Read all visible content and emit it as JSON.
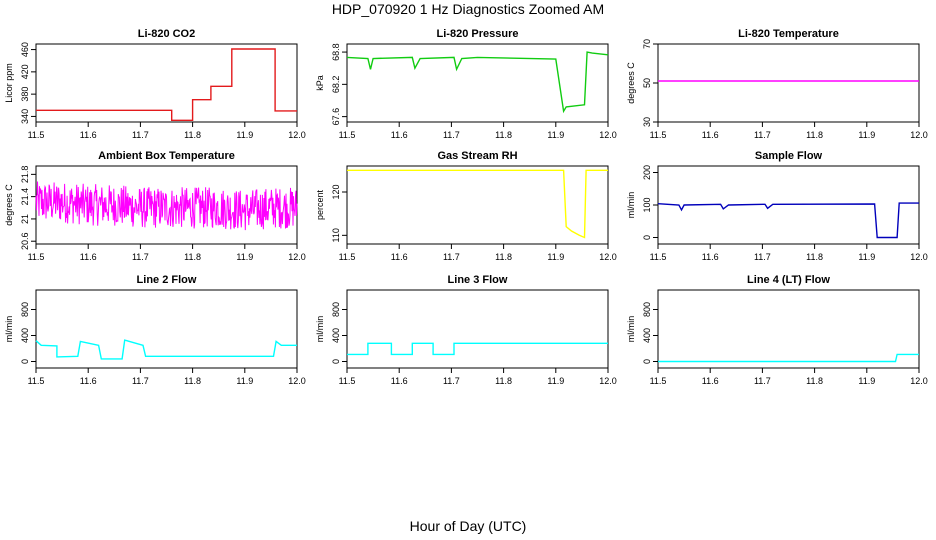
{
  "title": "HDP_070920  1 Hz Diagnostics Zoomed AM",
  "xlabel": "Hour of Day (UTC)",
  "chart_data": [
    {
      "type": "line",
      "title": "Li-820 CO2",
      "ylabel": "Licor ppm",
      "color": "#e31a1c",
      "xlim": [
        11.5,
        12.0
      ],
      "ylim": [
        330,
        470
      ],
      "xticks": [
        "11.5",
        "11.6",
        "11.7",
        "11.8",
        "11.9",
        "12.0"
      ],
      "yticks": [
        340,
        380,
        420,
        460
      ],
      "series": [
        {
          "x": [
            11.5,
            11.76,
            11.76,
            11.8,
            11.8,
            11.835,
            11.835,
            11.875,
            11.875,
            11.958,
            11.958,
            12.0
          ],
          "y": [
            351,
            351,
            333,
            333,
            370,
            370,
            394,
            394,
            461,
            461,
            350,
            350
          ]
        }
      ]
    },
    {
      "type": "line",
      "title": "Li-820 Pressure",
      "ylabel": "kPa",
      "color": "#11cc11",
      "xlim": [
        11.5,
        12.0
      ],
      "ylim": [
        67.5,
        68.95
      ],
      "xticks": [
        "11.5",
        "11.6",
        "11.7",
        "11.8",
        "11.9",
        "12.0"
      ],
      "yticks": [
        67.6,
        68.2,
        68.8
      ],
      "series": [
        {
          "x": [
            11.5,
            11.54,
            11.545,
            11.55,
            11.625,
            11.63,
            11.64,
            11.705,
            11.71,
            11.72,
            11.75,
            11.9,
            11.915,
            11.92,
            11.955,
            11.96,
            11.97,
            12.0
          ],
          "y": [
            68.7,
            68.68,
            68.48,
            68.68,
            68.7,
            68.5,
            68.68,
            68.7,
            68.48,
            68.68,
            68.7,
            68.67,
            67.7,
            67.78,
            67.82,
            68.8,
            68.78,
            68.75
          ]
        }
      ]
    },
    {
      "type": "line",
      "title": "Li-820 Temperature",
      "ylabel": "degrees C",
      "color": "#ff00ff",
      "xlim": [
        11.5,
        12.0
      ],
      "ylim": [
        30,
        70
      ],
      "xticks": [
        "11.5",
        "11.6",
        "11.7",
        "11.8",
        "11.9",
        "12.0"
      ],
      "yticks": [
        30,
        50,
        70
      ],
      "series": [
        {
          "x": [
            11.5,
            12.0
          ],
          "y": [
            51,
            51
          ]
        }
      ]
    },
    {
      "type": "line",
      "title": "Ambient Box Temperature",
      "ylabel": "degrees C",
      "color": "#ff00ff",
      "xlim": [
        11.5,
        12.0
      ],
      "ylim": [
        20.55,
        21.95
      ],
      "xticks": [
        "11.5",
        "11.6",
        "11.7",
        "11.8",
        "11.9",
        "12.0"
      ],
      "yticks": [
        20.6,
        21.0,
        21.4,
        21.8
      ],
      "series": [
        {
          "x": [
            11.5,
            11.55,
            11.6,
            11.65,
            11.7,
            11.75,
            11.8,
            11.85,
            11.9,
            11.95,
            12.0
          ],
          "y": [
            21.3,
            21.3,
            21.25,
            21.25,
            21.2,
            21.2,
            21.2,
            21.2,
            21.15,
            21.2,
            21.2
          ],
          "noise_range": [
            20.6,
            21.9
          ]
        }
      ]
    },
    {
      "type": "line",
      "title": "Gas Stream RH",
      "ylabel": "percent",
      "color": "#ffff00",
      "xlim": [
        11.5,
        12.0
      ],
      "ylim": [
        108,
        126
      ],
      "xticks": [
        "11.5",
        "11.6",
        "11.7",
        "11.8",
        "11.9",
        "12.0"
      ],
      "yticks": [
        110,
        120
      ],
      "series": [
        {
          "x": [
            11.5,
            11.915,
            11.92,
            11.93,
            11.945,
            11.955,
            11.958,
            12.0
          ],
          "y": [
            125,
            125,
            112,
            111,
            110,
            109.5,
            125,
            125
          ]
        }
      ]
    },
    {
      "type": "line",
      "title": "Sample Flow",
      "ylabel": "ml/min",
      "color": "#0000bb",
      "xlim": [
        11.5,
        12.0
      ],
      "ylim": [
        -20,
        220
      ],
      "xticks": [
        "11.5",
        "11.6",
        "11.7",
        "11.8",
        "11.9",
        "12.0"
      ],
      "yticks": [
        0,
        100,
        200
      ],
      "series": [
        {
          "x": [
            11.5,
            11.54,
            11.545,
            11.55,
            11.62,
            11.625,
            11.635,
            11.705,
            11.71,
            11.72,
            11.915,
            11.92,
            11.958,
            11.962,
            12.0
          ],
          "y": [
            104,
            100,
            85,
            100,
            102,
            88,
            100,
            102,
            90,
            102,
            103,
            0,
            0,
            106,
            106
          ]
        }
      ]
    },
    {
      "type": "line",
      "title": "Line 2 Flow",
      "ylabel": "ml/min",
      "color": "#00ffff",
      "xlim": [
        11.5,
        12.0
      ],
      "ylim": [
        -100,
        1100
      ],
      "xticks": [
        "11.5",
        "11.6",
        "11.7",
        "11.8",
        "11.9",
        "12.0"
      ],
      "yticks": [
        0,
        400,
        800
      ],
      "series": [
        {
          "x": [
            11.5,
            11.51,
            11.54,
            11.54,
            11.58,
            11.585,
            11.62,
            11.625,
            11.665,
            11.67,
            11.705,
            11.71,
            11.955,
            11.96,
            11.97,
            12.0
          ],
          "y": [
            320,
            250,
            240,
            70,
            80,
            310,
            250,
            40,
            40,
            330,
            250,
            80,
            80,
            310,
            250,
            250
          ]
        }
      ]
    },
    {
      "type": "line",
      "title": "Line 3 Flow",
      "ylabel": "ml/min",
      "color": "#00ffff",
      "xlim": [
        11.5,
        12.0
      ],
      "ylim": [
        -100,
        1100
      ],
      "xticks": [
        "11.5",
        "11.6",
        "11.7",
        "11.8",
        "11.9",
        "12.0"
      ],
      "yticks": [
        0,
        400,
        800
      ],
      "series": [
        {
          "x": [
            11.5,
            11.54,
            11.54,
            11.585,
            11.585,
            11.625,
            11.625,
            11.665,
            11.665,
            11.705,
            11.705,
            11.96,
            12.0
          ],
          "y": [
            110,
            110,
            280,
            280,
            110,
            110,
            280,
            280,
            110,
            110,
            280,
            280,
            280
          ]
        }
      ]
    },
    {
      "type": "line",
      "title": "Line 4 (LT) Flow",
      "ylabel": "ml/min",
      "color": "#00ffff",
      "xlim": [
        11.5,
        12.0
      ],
      "ylim": [
        -100,
        1100
      ],
      "xticks": [
        "11.5",
        "11.6",
        "11.7",
        "11.8",
        "11.9",
        "12.0"
      ],
      "yticks": [
        0,
        400,
        800
      ],
      "series": [
        {
          "x": [
            11.5,
            11.955,
            11.958,
            12.0
          ],
          "y": [
            0,
            0,
            110,
            110
          ]
        }
      ]
    }
  ]
}
